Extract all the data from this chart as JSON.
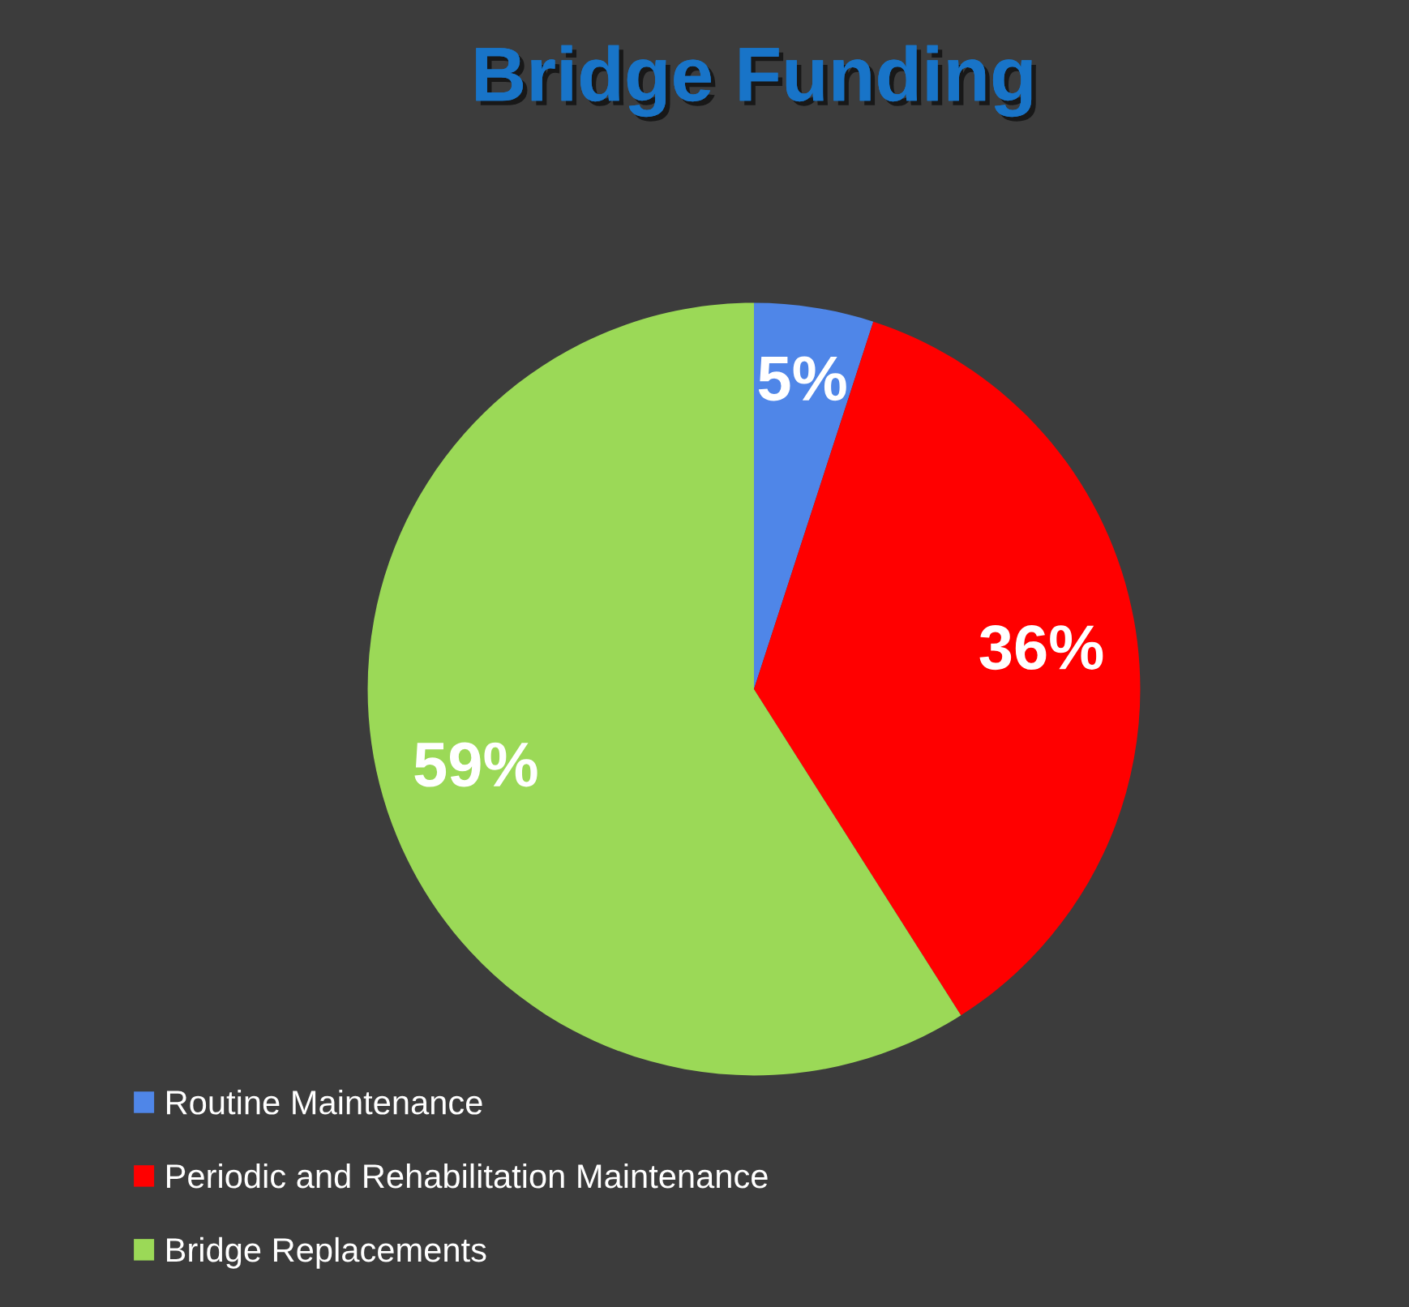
{
  "chart_data": {
    "type": "pie",
    "title": "Bridge Funding",
    "categories": [
      "Routine Maintenance",
      "Periodic and Rehabilitation Maintenance",
      "Bridge Replacements"
    ],
    "values": [
      5,
      36,
      59
    ],
    "colors": [
      "#4f86e8",
      "#ff0000",
      "#9bd957"
    ],
    "value_labels": [
      "5%",
      "36%",
      "59%"
    ],
    "legend": "bottom left"
  }
}
